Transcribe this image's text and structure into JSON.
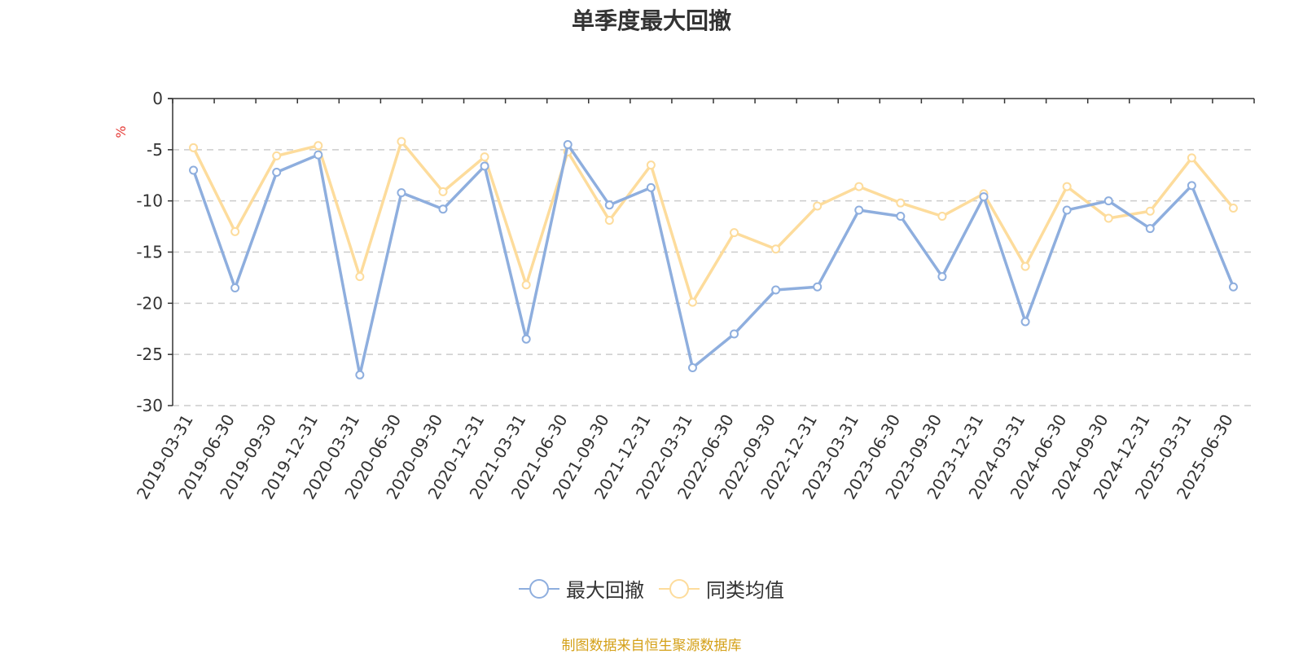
{
  "chart_data": {
    "type": "line",
    "title": "单季度最大回撤",
    "ylabel": "%",
    "ylim": [
      -30,
      0
    ],
    "yticks": [
      0,
      -5,
      -10,
      -15,
      -20,
      -25,
      -30
    ],
    "x": [
      "2019-03-31",
      "2019-06-30",
      "2019-09-30",
      "2019-12-31",
      "2020-03-31",
      "2020-06-30",
      "2020-09-30",
      "2020-12-31",
      "2021-03-31",
      "2021-06-30",
      "2021-09-30",
      "2021-12-31",
      "2022-03-31",
      "2022-06-30",
      "2022-09-30",
      "2022-12-31",
      "2023-03-31",
      "2023-06-30",
      "2023-09-30",
      "2023-12-31",
      "2024-03-31",
      "2024-06-30",
      "2024-09-30",
      "2024-12-31",
      "2025-03-31",
      "2025-06-30"
    ],
    "series": [
      {
        "name": "最大回撤",
        "color": "#8eaede",
        "values": [
          -7.0,
          -18.5,
          -7.2,
          -5.5,
          -27.0,
          -9.2,
          -10.8,
          -6.6,
          -23.5,
          -4.5,
          -10.4,
          -8.7,
          -26.3,
          -23.0,
          -18.7,
          -18.4,
          -10.9,
          -11.5,
          -17.4,
          -9.6,
          -21.8,
          -10.9,
          -10.0,
          -12.7,
          -8.5,
          -18.4
        ]
      },
      {
        "name": "同类均值",
        "color": "#fddc9c",
        "values": [
          -4.8,
          -13.0,
          -5.6,
          -4.6,
          -17.4,
          -4.2,
          -9.1,
          -5.7,
          -18.2,
          -5.2,
          -11.9,
          -6.5,
          -19.9,
          -13.1,
          -14.7,
          -10.5,
          -8.6,
          -10.2,
          -11.5,
          -9.3,
          -16.4,
          -8.6,
          -11.7,
          -11.0,
          -5.8,
          -10.7
        ]
      }
    ],
    "grid": true,
    "legend_position": "bottom"
  },
  "source_note": "制图数据来自恒生聚源数据库",
  "colors": {
    "axis": "#333333",
    "grid": "#cccccc",
    "unit": "#e53935",
    "source_note": "#d4a017"
  }
}
